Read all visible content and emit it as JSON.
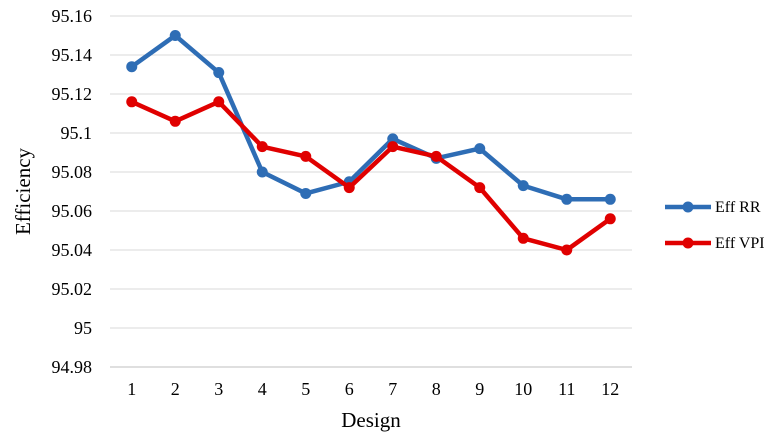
{
  "chart_data": {
    "type": "line",
    "title": "",
    "xlabel": "Design",
    "ylabel": "Efficiency",
    "categories": [
      "1",
      "2",
      "3",
      "4",
      "5",
      "6",
      "7",
      "8",
      "9",
      "10",
      "11",
      "12"
    ],
    "y_ticks": [
      "94.98",
      "95",
      "95.02",
      "95.04",
      "95.06",
      "95.08",
      "95.1",
      "95.12",
      "95.14",
      "95.16"
    ],
    "ylim": [
      94.98,
      95.16
    ],
    "grid": true,
    "legend_position": "right",
    "series": [
      {
        "name": "Eff RR",
        "color": "#2e6db5",
        "values": [
          95.134,
          95.15,
          95.131,
          95.08,
          95.069,
          95.075,
          95.097,
          95.087,
          95.092,
          95.073,
          95.066,
          95.066
        ]
      },
      {
        "name": "Eff VPI",
        "color": "#e00000",
        "values": [
          95.116,
          95.106,
          95.116,
          95.093,
          95.088,
          95.072,
          95.093,
          95.088,
          95.072,
          95.046,
          95.04,
          95.056
        ]
      }
    ]
  }
}
